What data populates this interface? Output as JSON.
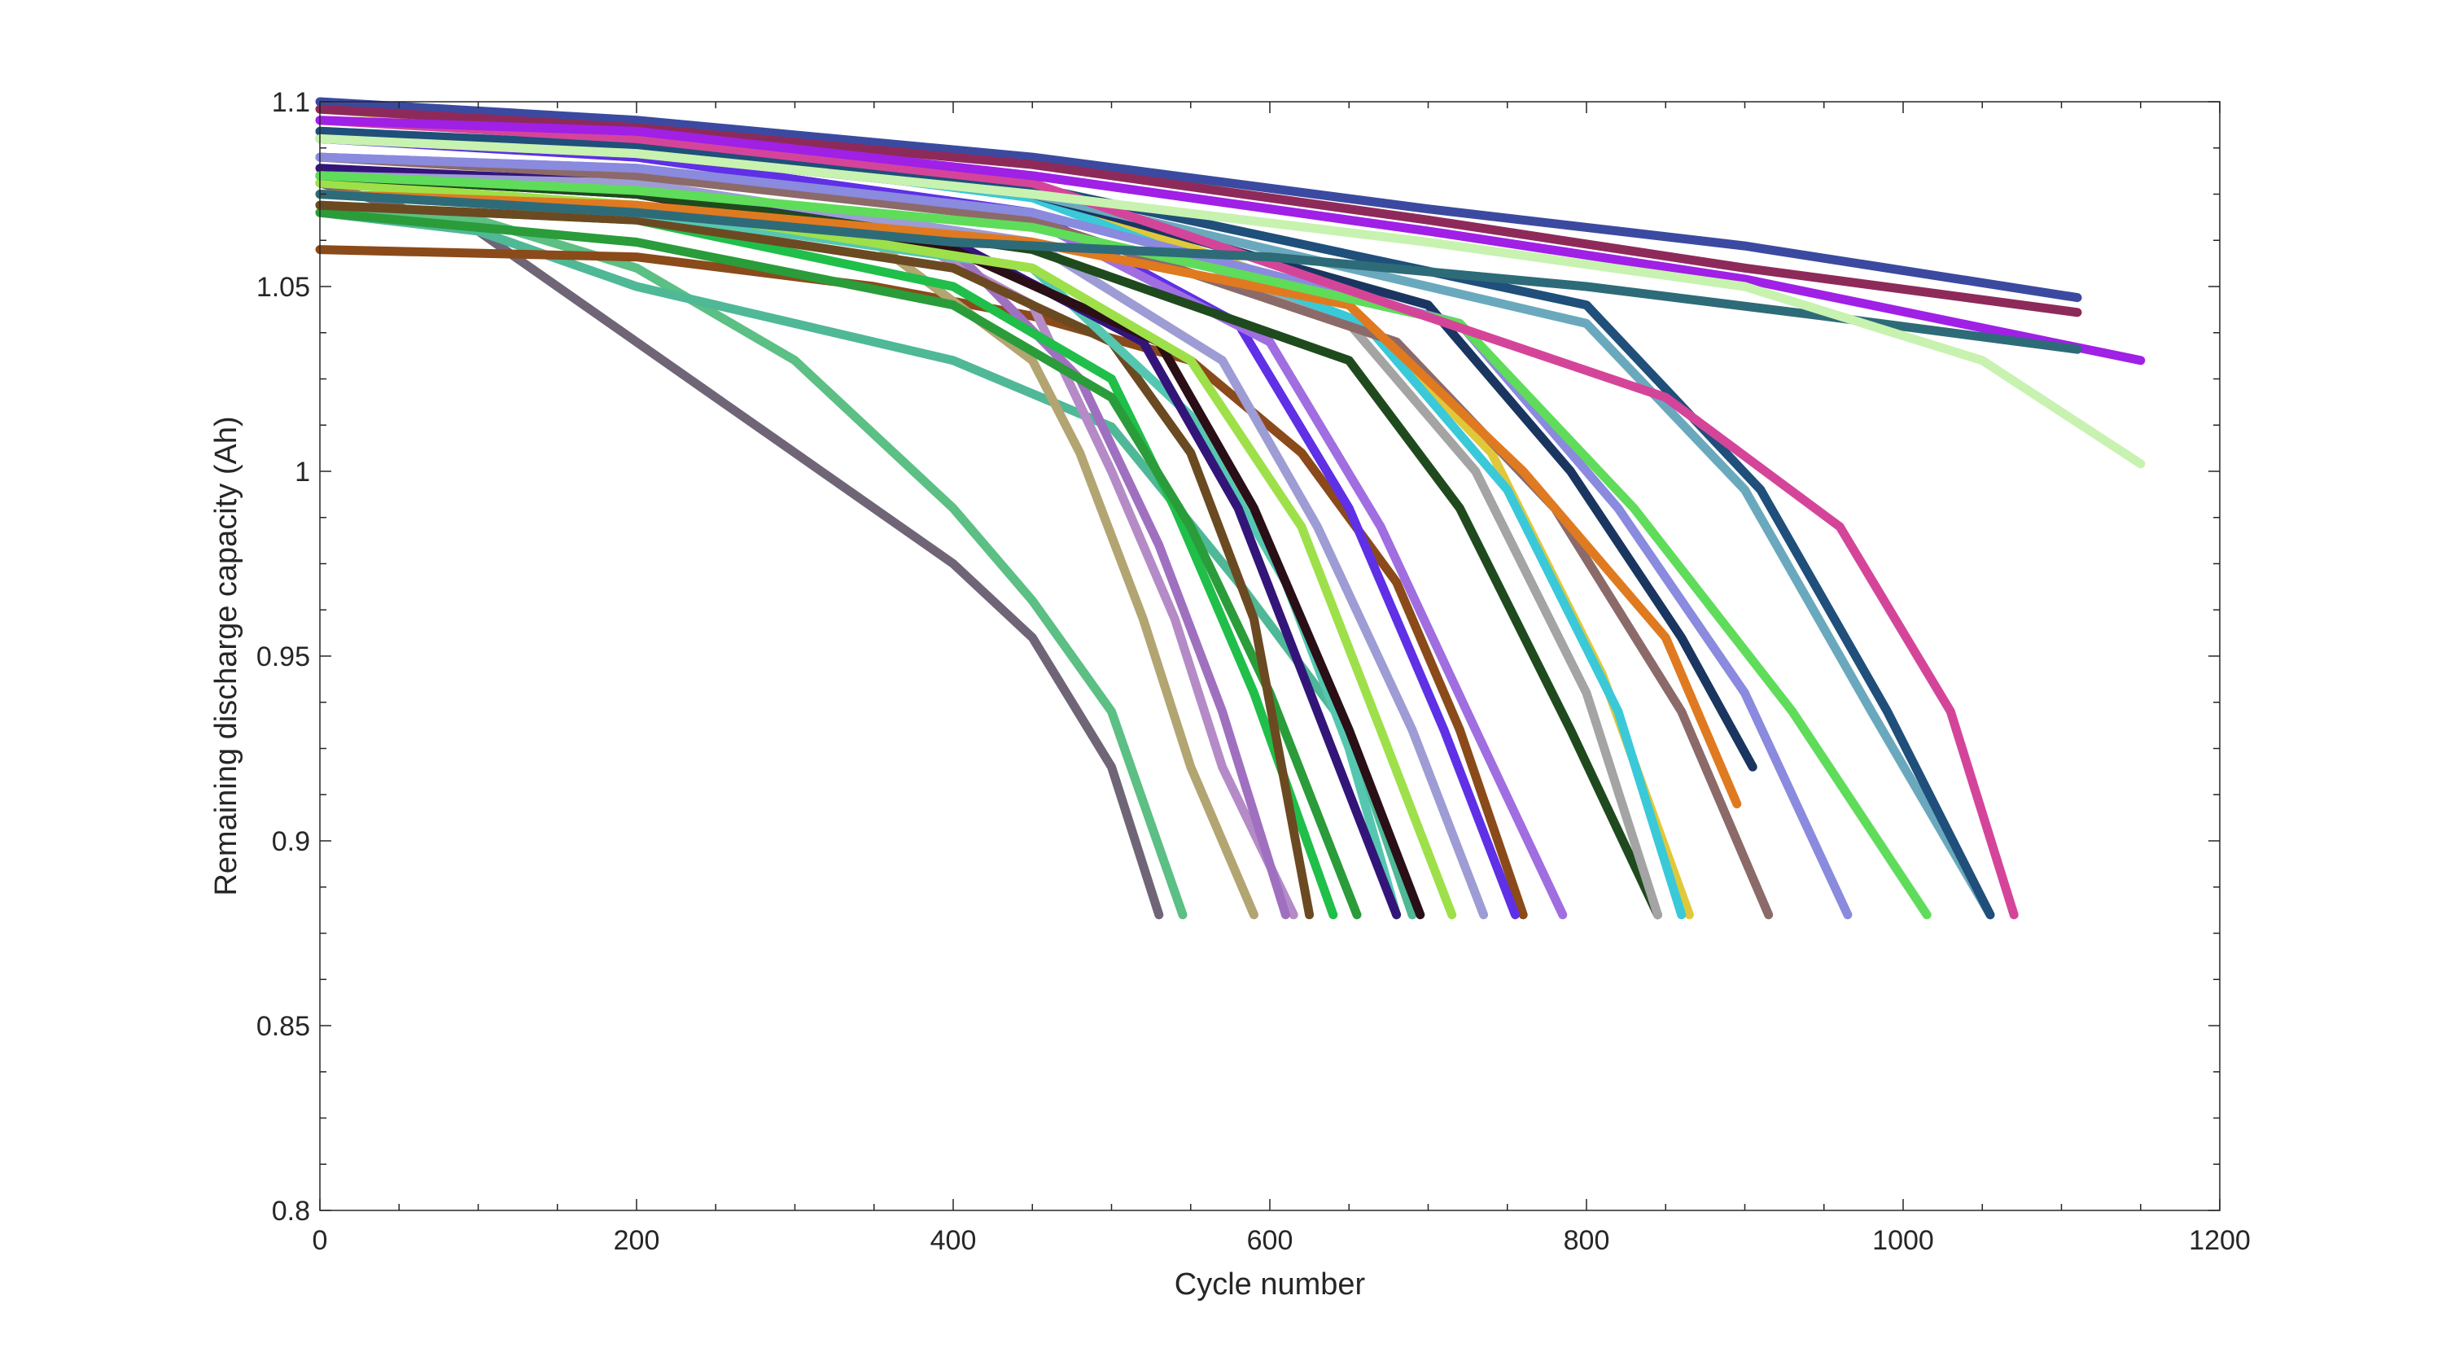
{
  "chart_data": {
    "type": "line",
    "title": "",
    "xlabel": "Cycle number",
    "ylabel": "Remaining discharge capacity (Ah)",
    "xlim": [
      0,
      1200
    ],
    "ylim": [
      0.8,
      1.1
    ],
    "x_ticks": [
      0,
      200,
      400,
      600,
      800,
      1000,
      1200
    ],
    "y_ticks": [
      0.8,
      0.85,
      0.9,
      0.95,
      1,
      1.05,
      1.1
    ],
    "x_tick_labels": [
      "0",
      "200",
      "400",
      "600",
      "800",
      "1000",
      "1200"
    ],
    "y_tick_labels": [
      "0.8",
      "0.85",
      "0.9",
      "0.95",
      "1",
      "1.05",
      "1.1"
    ],
    "grid": false,
    "legend": "none",
    "series": [
      {
        "color": "#6f6577",
        "values": [
          [
            0,
            1.078
          ],
          [
            100,
            1.065
          ],
          [
            200,
            1.035
          ],
          [
            300,
            1.005
          ],
          [
            400,
            0.975
          ],
          [
            450,
            0.955
          ],
          [
            500,
            0.92
          ],
          [
            530,
            0.88
          ]
        ]
      },
      {
        "color": "#5cbf84",
        "values": [
          [
            0,
            1.072
          ],
          [
            100,
            1.068
          ],
          [
            200,
            1.055
          ],
          [
            300,
            1.03
          ],
          [
            400,
            0.99
          ],
          [
            450,
            0.965
          ],
          [
            500,
            0.935
          ],
          [
            545,
            0.88
          ]
        ]
      },
      {
        "color": "#4fb897",
        "values": [
          [
            0,
            1.07
          ],
          [
            100,
            1.065
          ],
          [
            200,
            1.05
          ],
          [
            300,
            1.04
          ],
          [
            400,
            1.03
          ],
          [
            500,
            1.012
          ],
          [
            580,
            0.97
          ],
          [
            650,
            0.93
          ],
          [
            690,
            0.88
          ]
        ]
      },
      {
        "color": "#8b4a1a",
        "values": [
          [
            0,
            1.06
          ],
          [
            200,
            1.058
          ],
          [
            350,
            1.05
          ],
          [
            450,
            1.042
          ],
          [
            550,
            1.03
          ],
          [
            620,
            1.005
          ],
          [
            680,
            0.97
          ],
          [
            720,
            0.93
          ],
          [
            760,
            0.88
          ]
        ]
      },
      {
        "color": "#b3a571",
        "values": [
          [
            0,
            1.075
          ],
          [
            200,
            1.072
          ],
          [
            350,
            1.062
          ],
          [
            450,
            1.03
          ],
          [
            480,
            1.005
          ],
          [
            520,
            0.96
          ],
          [
            550,
            0.92
          ],
          [
            590,
            0.88
          ]
        ]
      },
      {
        "color": "#b48bc7",
        "values": [
          [
            0,
            1.08
          ],
          [
            200,
            1.078
          ],
          [
            350,
            1.068
          ],
          [
            450,
            1.045
          ],
          [
            500,
            1.0
          ],
          [
            540,
            0.96
          ],
          [
            570,
            0.92
          ],
          [
            615,
            0.88
          ]
        ]
      },
      {
        "color": "#a070c0",
        "values": [
          [
            0,
            1.08
          ],
          [
            200,
            1.076
          ],
          [
            400,
            1.06
          ],
          [
            480,
            1.025
          ],
          [
            530,
            0.98
          ],
          [
            570,
            0.935
          ],
          [
            610,
            0.88
          ]
        ]
      },
      {
        "color": "#1fbf4a",
        "values": [
          [
            0,
            1.072
          ],
          [
            200,
            1.068
          ],
          [
            400,
            1.05
          ],
          [
            500,
            1.025
          ],
          [
            540,
            0.99
          ],
          [
            590,
            0.94
          ],
          [
            640,
            0.88
          ]
        ]
      },
      {
        "color": "#2a9c3a",
        "values": [
          [
            0,
            1.07
          ],
          [
            200,
            1.062
          ],
          [
            400,
            1.045
          ],
          [
            500,
            1.02
          ],
          [
            550,
            0.985
          ],
          [
            600,
            0.94
          ],
          [
            655,
            0.88
          ]
        ]
      },
      {
        "color": "#6b4a22",
        "values": [
          [
            0,
            1.072
          ],
          [
            200,
            1.068
          ],
          [
            400,
            1.055
          ],
          [
            500,
            1.035
          ],
          [
            550,
            1.005
          ],
          [
            590,
            0.96
          ],
          [
            625,
            0.88
          ]
        ]
      },
      {
        "color": "#55c7b1",
        "values": [
          [
            0,
            1.075
          ],
          [
            200,
            1.07
          ],
          [
            450,
            1.055
          ],
          [
            550,
            1.015
          ],
          [
            610,
            0.97
          ],
          [
            650,
            0.925
          ],
          [
            680,
            0.88
          ]
        ]
      },
      {
        "color": "#33157a",
        "values": [
          [
            0,
            1.082
          ],
          [
            200,
            1.078
          ],
          [
            400,
            1.062
          ],
          [
            520,
            1.035
          ],
          [
            580,
            0.99
          ],
          [
            630,
            0.935
          ],
          [
            680,
            0.88
          ]
        ]
      },
      {
        "color": "#2a0f16",
        "values": [
          [
            0,
            1.08
          ],
          [
            200,
            1.075
          ],
          [
            400,
            1.06
          ],
          [
            530,
            1.035
          ],
          [
            590,
            0.99
          ],
          [
            650,
            0.93
          ],
          [
            695,
            0.88
          ]
        ]
      },
      {
        "color": "#9ee04a",
        "values": [
          [
            0,
            1.078
          ],
          [
            200,
            1.072
          ],
          [
            450,
            1.055
          ],
          [
            550,
            1.03
          ],
          [
            620,
            0.985
          ],
          [
            670,
            0.93
          ],
          [
            715,
            0.88
          ]
        ]
      },
      {
        "color": "#9e9cd4",
        "values": [
          [
            0,
            1.08
          ],
          [
            200,
            1.078
          ],
          [
            450,
            1.062
          ],
          [
            570,
            1.03
          ],
          [
            630,
            0.985
          ],
          [
            690,
            0.93
          ],
          [
            735,
            0.88
          ]
        ]
      },
      {
        "color": "#5f30e6",
        "values": [
          [
            0,
            1.09
          ],
          [
            200,
            1.085
          ],
          [
            450,
            1.07
          ],
          [
            580,
            1.04
          ],
          [
            650,
            0.99
          ],
          [
            710,
            0.93
          ],
          [
            755,
            0.88
          ]
        ]
      },
      {
        "color": "#a06ee0",
        "values": [
          [
            0,
            1.085
          ],
          [
            200,
            1.082
          ],
          [
            450,
            1.068
          ],
          [
            600,
            1.035
          ],
          [
            670,
            0.985
          ],
          [
            730,
            0.93
          ],
          [
            785,
            0.88
          ]
        ]
      },
      {
        "color": "#1f4a1e",
        "values": [
          [
            0,
            1.08
          ],
          [
            200,
            1.075
          ],
          [
            450,
            1.06
          ],
          [
            650,
            1.03
          ],
          [
            720,
            0.99
          ],
          [
            790,
            0.93
          ],
          [
            845,
            0.88
          ]
        ]
      },
      {
        "color": "#a4a4a4",
        "values": [
          [
            0,
            1.09
          ],
          [
            200,
            1.086
          ],
          [
            450,
            1.075
          ],
          [
            650,
            1.04
          ],
          [
            730,
            1.0
          ],
          [
            800,
            0.94
          ],
          [
            845,
            0.88
          ]
        ]
      },
      {
        "color": "#e0c83a",
        "values": [
          [
            0,
            1.098
          ],
          [
            200,
            1.092
          ],
          [
            450,
            1.076
          ],
          [
            650,
            1.045
          ],
          [
            740,
            1.005
          ],
          [
            810,
            0.945
          ],
          [
            865,
            0.88
          ]
        ]
      },
      {
        "color": "#3ac9d9",
        "values": [
          [
            0,
            1.092
          ],
          [
            200,
            1.088
          ],
          [
            450,
            1.074
          ],
          [
            660,
            1.04
          ],
          [
            750,
            0.995
          ],
          [
            820,
            0.935
          ],
          [
            860,
            0.88
          ]
        ]
      },
      {
        "color": "#8c6a6a",
        "values": [
          [
            0,
            1.085
          ],
          [
            200,
            1.08
          ],
          [
            450,
            1.068
          ],
          [
            680,
            1.035
          ],
          [
            780,
            0.99
          ],
          [
            860,
            0.935
          ],
          [
            915,
            0.88
          ]
        ]
      },
      {
        "color": "#e07a20",
        "values": [
          [
            0,
            1.075
          ],
          [
            200,
            1.072
          ],
          [
            450,
            1.062
          ],
          [
            650,
            1.045
          ],
          [
            760,
            1.0
          ],
          [
            850,
            0.955
          ],
          [
            895,
            0.91
          ]
        ]
      },
      {
        "color": "#1a3560",
        "values": [
          [
            0,
            1.09
          ],
          [
            200,
            1.086
          ],
          [
            450,
            1.075
          ],
          [
            700,
            1.045
          ],
          [
            790,
            1.0
          ],
          [
            860,
            0.955
          ],
          [
            905,
            0.92
          ]
        ]
      },
      {
        "color": "#8a8ade",
        "values": [
          [
            0,
            1.085
          ],
          [
            200,
            1.082
          ],
          [
            450,
            1.07
          ],
          [
            720,
            1.04
          ],
          [
            820,
            0.99
          ],
          [
            900,
            0.94
          ],
          [
            965,
            0.88
          ]
        ]
      },
      {
        "color": "#5fdc5a",
        "values": [
          [
            0,
            1.08
          ],
          [
            200,
            1.076
          ],
          [
            450,
            1.066
          ],
          [
            720,
            1.04
          ],
          [
            830,
            0.99
          ],
          [
            930,
            0.935
          ],
          [
            1015,
            0.88
          ]
        ]
      },
      {
        "color": "#6aa9bd",
        "values": [
          [
            0,
            1.09
          ],
          [
            200,
            1.086
          ],
          [
            450,
            1.075
          ],
          [
            800,
            1.04
          ],
          [
            900,
            0.995
          ],
          [
            980,
            0.935
          ],
          [
            1055,
            0.88
          ]
        ]
      },
      {
        "color": "#1f4f7a",
        "values": [
          [
            0,
            1.092
          ],
          [
            200,
            1.088
          ],
          [
            450,
            1.077
          ],
          [
            800,
            1.045
          ],
          [
            910,
            0.995
          ],
          [
            990,
            0.935
          ],
          [
            1055,
            0.88
          ]
        ]
      },
      {
        "color": "#d4459a",
        "values": [
          [
            0,
            1.095
          ],
          [
            200,
            1.09
          ],
          [
            450,
            1.078
          ],
          [
            850,
            1.02
          ],
          [
            960,
            0.985
          ],
          [
            1030,
            0.935
          ],
          [
            1070,
            0.88
          ]
        ]
      },
      {
        "color": "#3b4aa0",
        "values": [
          [
            0,
            1.1
          ],
          [
            200,
            1.095
          ],
          [
            450,
            1.085
          ],
          [
            700,
            1.071
          ],
          [
            900,
            1.061
          ],
          [
            1110,
            1.047
          ]
        ]
      },
      {
        "color": "#8e2a5a",
        "values": [
          [
            0,
            1.098
          ],
          [
            200,
            1.093
          ],
          [
            450,
            1.083
          ],
          [
            700,
            1.068
          ],
          [
            900,
            1.055
          ],
          [
            1110,
            1.043
          ]
        ]
      },
      {
        "color": "#a020e6",
        "values": [
          [
            0,
            1.095
          ],
          [
            200,
            1.092
          ],
          [
            450,
            1.08
          ],
          [
            700,
            1.065
          ],
          [
            900,
            1.052
          ],
          [
            1150,
            1.03
          ]
        ]
      },
      {
        "color": "#2e6b78",
        "values": [
          [
            0,
            1.075
          ],
          [
            200,
            1.07
          ],
          [
            400,
            1.062
          ],
          [
            600,
            1.058
          ],
          [
            800,
            1.05
          ],
          [
            950,
            1.042
          ],
          [
            1110,
            1.033
          ]
        ]
      },
      {
        "color": "#c8f2b0",
        "values": [
          [
            0,
            1.09
          ],
          [
            200,
            1.086
          ],
          [
            450,
            1.075
          ],
          [
            700,
            1.062
          ],
          [
            900,
            1.05
          ],
          [
            1050,
            1.03
          ],
          [
            1150,
            1.002
          ]
        ]
      }
    ]
  }
}
